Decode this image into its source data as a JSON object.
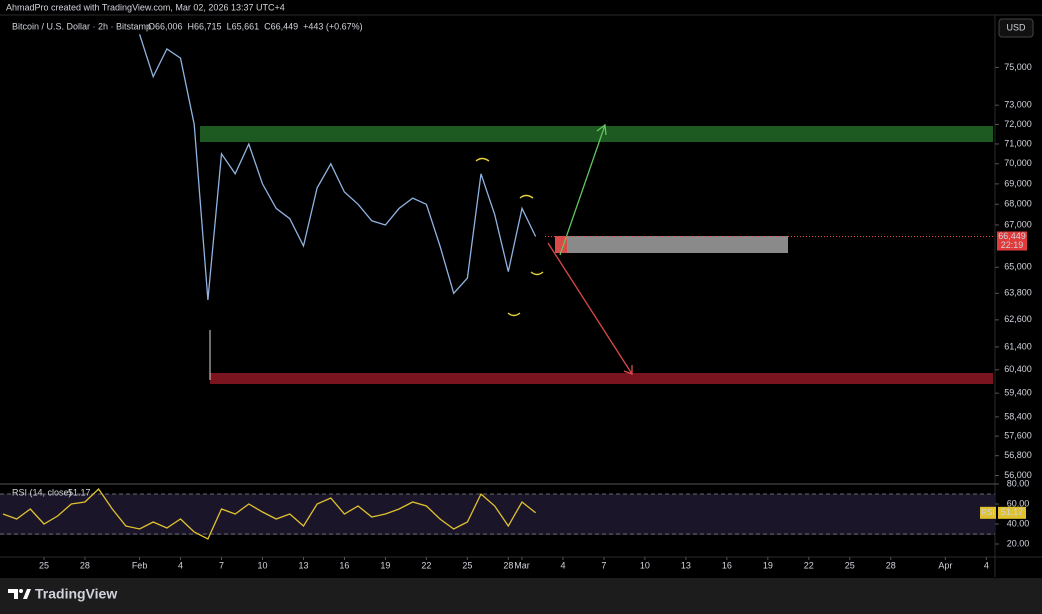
{
  "header": {
    "credit": "AhmadPro created with TradingView.com, Mar 02, 2026 13:37 UTC+4",
    "currency": "USD"
  },
  "chart_data": [
    {
      "type": "line",
      "title": "Bitcoin / U.S. Dollar · 2h · Bitstamp",
      "ohlc": [
        "O66,006",
        "H66,715",
        "L65,661",
        "C66,449",
        "+443 (+0.67%)"
      ],
      "log_scale": true,
      "ylim": [
        55700,
        77700
      ],
      "xlim": [
        "Jan 22",
        "Apr 5"
      ],
      "yticks": [
        {
          "value": 75000,
          "label": "75,000"
        },
        {
          "value": 73000,
          "label": "73,000"
        },
        {
          "value": 72000,
          "label": "72,000"
        },
        {
          "value": 71000,
          "label": "71,000"
        },
        {
          "value": 70000,
          "label": "70,000"
        },
        {
          "value": 69000,
          "label": "69,000"
        },
        {
          "value": 68000,
          "label": "68,000"
        },
        {
          "value": 67000,
          "label": "67,000"
        },
        {
          "value": 65000,
          "label": "65,000"
        },
        {
          "value": 63800,
          "label": "63,800"
        },
        {
          "value": 62600,
          "label": "62,600"
        },
        {
          "value": 61400,
          "label": "61,400"
        },
        {
          "value": 60400,
          "label": "60,400"
        },
        {
          "value": 59400,
          "label": "59,400"
        },
        {
          "value": 58400,
          "label": "58,400"
        },
        {
          "value": 57600,
          "label": "57,600"
        },
        {
          "value": 56800,
          "label": "56,800"
        },
        {
          "value": 56000,
          "label": "56,000"
        }
      ],
      "x": [
        "Feb 1",
        "Feb 2",
        "Feb 3",
        "Feb 4",
        "Feb 5",
        "Feb 6",
        "Feb 7",
        "Feb 8",
        "Feb 9",
        "Feb 10",
        "Feb 11",
        "Feb 12",
        "Feb 13",
        "Feb 14",
        "Feb 15",
        "Feb 16",
        "Feb 17",
        "Feb 18",
        "Feb 19",
        "Feb 20",
        "Feb 21",
        "Feb 22",
        "Feb 23",
        "Feb 24",
        "Feb 25",
        "Feb 26",
        "Feb 27",
        "Feb 28",
        "Mar 1",
        "Mar 2"
      ],
      "series": [
        {
          "color": "#8fb3e0",
          "values": [
            76800,
            74500,
            76000,
            75500,
            72000,
            63500,
            70500,
            69500,
            71000,
            69000,
            67800,
            67300,
            66000,
            68800,
            70000,
            68600,
            68000,
            67200,
            67000,
            67800,
            68300,
            68000,
            66000,
            63800,
            64500,
            69500,
            67500,
            64800,
            67800,
            66449
          ]
        }
      ],
      "last_price": {
        "value": 66449,
        "label": "66,449"
      },
      "countdown": "22:19",
      "grid": false
    },
    {
      "type": "line",
      "title": "RSI (14, close)",
      "last_label": "51.17",
      "axis_tag": "RSI",
      "ylim": [
        8,
        82
      ],
      "xlim": [
        "Jan 22",
        "Apr 5"
      ],
      "band": [
        30,
        70
      ],
      "yticks": [
        {
          "value": 80,
          "label": "80.00"
        },
        {
          "value": 60,
          "label": "60.00"
        },
        {
          "value": 40,
          "label": "40.00"
        },
        {
          "value": 20,
          "label": "20.00"
        }
      ],
      "xticks": [
        {
          "value": "Jan 25",
          "label": "25"
        },
        {
          "value": "Jan 28",
          "label": "28"
        },
        {
          "value": "Feb 1",
          "label": "Feb"
        },
        {
          "value": "Feb 4",
          "label": "4"
        },
        {
          "value": "Feb 7",
          "label": "7"
        },
        {
          "value": "Feb 10",
          "label": "10"
        },
        {
          "value": "Feb 13",
          "label": "13"
        },
        {
          "value": "Feb 16",
          "label": "16"
        },
        {
          "value": "Feb 19",
          "label": "19"
        },
        {
          "value": "Feb 22",
          "label": "22"
        },
        {
          "value": "Feb 25",
          "label": "25"
        },
        {
          "value": "Feb 28",
          "label": "28"
        },
        {
          "value": "Mar 1",
          "label": "Mar"
        },
        {
          "value": "Mar 4",
          "label": "4"
        },
        {
          "value": "Mar 7",
          "label": "7"
        },
        {
          "value": "Mar 10",
          "label": "10"
        },
        {
          "value": "Mar 13",
          "label": "13"
        },
        {
          "value": "Mar 16",
          "label": "16"
        },
        {
          "value": "Mar 19",
          "label": "19"
        },
        {
          "value": "Mar 22",
          "label": "22"
        },
        {
          "value": "Mar 25",
          "label": "25"
        },
        {
          "value": "Mar 28",
          "label": "28"
        },
        {
          "value": "Apr 1",
          "label": "Apr"
        },
        {
          "value": "Apr 4",
          "label": "4"
        }
      ],
      "x": [
        "Jan 22",
        "Jan 23",
        "Jan 24",
        "Jan 25",
        "Jan 26",
        "Jan 27",
        "Jan 28",
        "Jan 29",
        "Jan 30",
        "Jan 31",
        "Feb 1",
        "Feb 2",
        "Feb 3",
        "Feb 4",
        "Feb 5",
        "Feb 6",
        "Feb 7",
        "Feb 8",
        "Feb 9",
        "Feb 10",
        "Feb 11",
        "Feb 12",
        "Feb 13",
        "Feb 14",
        "Feb 15",
        "Feb 16",
        "Feb 17",
        "Feb 18",
        "Feb 19",
        "Feb 20",
        "Feb 21",
        "Feb 22",
        "Feb 23",
        "Feb 24",
        "Feb 25",
        "Feb 26",
        "Feb 27",
        "Feb 28",
        "Mar 1",
        "Mar 2"
      ],
      "series": [
        {
          "color": "#e0c12e",
          "values": [
            50,
            45,
            55,
            40,
            48,
            60,
            62,
            75,
            55,
            38,
            35,
            42,
            36,
            45,
            32,
            25,
            55,
            50,
            60,
            52,
            45,
            50,
            38,
            60,
            66,
            50,
            58,
            47,
            50,
            55,
            62,
            58,
            45,
            35,
            42,
            70,
            58,
            38,
            62,
            51.17
          ]
        }
      ]
    }
  ],
  "footer": {
    "brand": "TradingView"
  }
}
